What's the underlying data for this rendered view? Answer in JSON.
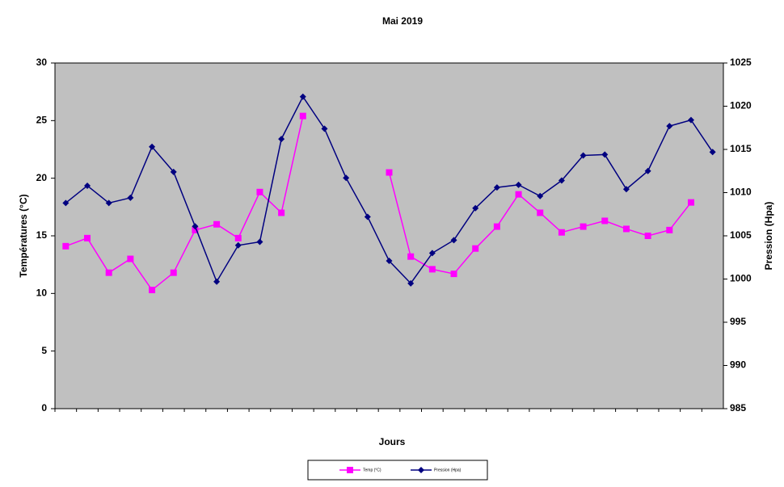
{
  "chart_data": {
    "type": "line",
    "title": "Mai 2019",
    "xlabel": "Jours",
    "ylabel": "Températures (°C)",
    "y2label": "Pression (Hpa)",
    "categories": [
      null,
      null,
      null,
      null,
      null,
      null,
      null,
      null,
      null,
      null,
      null,
      null,
      null,
      null,
      null,
      null,
      null,
      null,
      null,
      null,
      null,
      null,
      null,
      null,
      null,
      null,
      null,
      null,
      null,
      null,
      null
    ],
    "ylim": [
      0,
      30
    ],
    "yticks": [
      0,
      5,
      10,
      15,
      20,
      25,
      30
    ],
    "y2lim": [
      985,
      1025
    ],
    "y2ticks": [
      985,
      990,
      995,
      1000,
      1005,
      1010,
      1015,
      1020,
      1025
    ],
    "background": "#c0c0c0",
    "legend": "bottom",
    "series": [
      {
        "name": "Temp (°C)",
        "color": "#ff00ff",
        "marker": "square",
        "values": [
          14.1,
          14.8,
          11.8,
          13.0,
          10.3,
          11.8,
          15.5,
          16.0,
          14.8,
          18.8,
          17.0,
          25.4,
          null,
          null,
          null,
          20.5,
          13.2,
          12.1,
          11.7,
          13.9,
          15.8,
          18.6,
          17.0,
          15.3,
          15.8,
          16.3,
          15.6,
          15.0,
          15.5,
          17.9,
          null
        ]
      },
      {
        "name": "Pression (Hpa)",
        "color": "#000080",
        "marker": "diamond",
        "axis": "y2",
        "values": [
          1008.8,
          1010.8,
          1008.8,
          1009.4,
          1015.3,
          1012.4,
          1006.1,
          999.7,
          1003.9,
          1004.3,
          1016.2,
          1021.1,
          1017.4,
          1011.7,
          1007.2,
          1002.1,
          999.5,
          1003.0,
          1004.5,
          1008.2,
          1010.6,
          1010.9,
          1009.6,
          1011.4,
          1014.3,
          1014.4,
          1010.4,
          1012.5,
          1017.7,
          1018.4,
          1014.7
        ]
      }
    ]
  }
}
